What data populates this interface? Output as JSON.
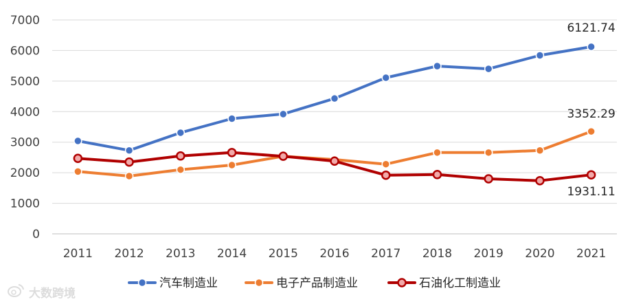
{
  "chart_data": {
    "type": "line",
    "title": "",
    "xlabel": "",
    "ylabel": "",
    "ylim": [
      0,
      7000
    ],
    "yticks": [
      0,
      1000,
      2000,
      3000,
      4000,
      5000,
      6000,
      7000
    ],
    "ytick_labels": [
      "0",
      "1000",
      "2000",
      "3000",
      "4000",
      "5000",
      "6000",
      "7000"
    ],
    "categories": [
      "2011",
      "2012",
      "2013",
      "2014",
      "2015",
      "2016",
      "2017",
      "2018",
      "2019",
      "2020",
      "2021"
    ],
    "grid": true,
    "legend_position": "bottom",
    "series": [
      {
        "name": "汽车制造业",
        "color": "#4472c4",
        "values": [
          3040,
          2730,
          3310,
          3770,
          3920,
          4430,
          5110,
          5490,
          5400,
          5840,
          6121.74
        ],
        "end_label": "6121.74"
      },
      {
        "name": "电子产品制造业",
        "color": "#ed7d31",
        "values": [
          2040,
          1890,
          2100,
          2250,
          2540,
          2430,
          2280,
          2660,
          2660,
          2730,
          3352.29
        ],
        "end_label": "3352.29"
      },
      {
        "name": "石油化工制造业",
        "color": "#b00000",
        "marker_fill": "#f2aaaa",
        "values": [
          2470,
          2350,
          2550,
          2660,
          2540,
          2380,
          1920,
          1940,
          1800,
          1740,
          1931.11
        ],
        "end_label": "1931.11"
      }
    ]
  },
  "watermark": {
    "text": "大数跨境",
    "icon": "weibo-logo-icon"
  }
}
